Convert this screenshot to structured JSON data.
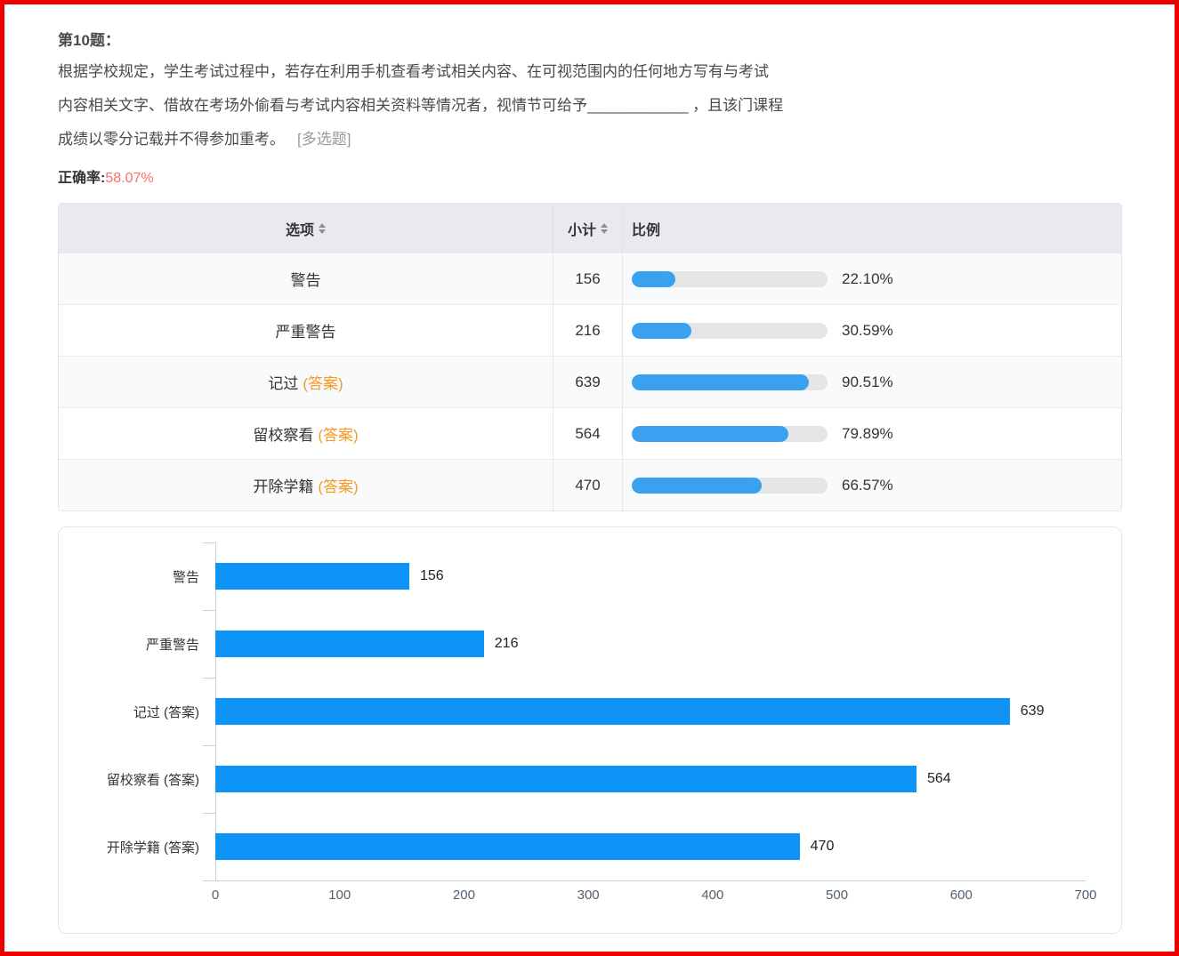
{
  "colors": {
    "frame_red": "#ee0000",
    "accuracy_red": "#ff6b6b",
    "answer_orange": "#f59a23",
    "table_progress_blue": "#3aa1f1",
    "chart_bar_blue": "#0d94f6",
    "track_gray": "#e5e5e6",
    "header_bg": "#e8eaef"
  },
  "question": {
    "number": "第10题：",
    "lines": [
      "根据学校规定，学生考试过程中，若存在利用手机查看考试相关内容、在可视范围内的任何地方写有与考试",
      "内容相关文字、借故在考场外偷看与考试内容相关资料等情况者，视情节可给予____________ ，且该门课程",
      "成绩以零分记载并不得参加重考。"
    ],
    "type_tag": "[多选题]",
    "accuracy_label": "正确率:",
    "accuracy_value": "58.07%"
  },
  "table": {
    "headers": [
      "选项",
      "小计",
      "比例"
    ],
    "rows": [
      {
        "option": "警告",
        "tag": "",
        "count": "156",
        "percent": "22.10%",
        "percent_value": 22.1
      },
      {
        "option": "严重警告",
        "tag": "",
        "count": "216",
        "percent": "30.59%",
        "percent_value": 30.59
      },
      {
        "option": "记过",
        "tag": "(答案)",
        "count": "639",
        "percent": "90.51%",
        "percent_value": 90.51
      },
      {
        "option": "留校察看",
        "tag": "(答案)",
        "count": "564",
        "percent": "79.89%",
        "percent_value": 79.89
      },
      {
        "option": "开除学籍",
        "tag": "(答案)",
        "count": "470",
        "percent": "66.57%",
        "percent_value": 66.57
      }
    ]
  },
  "chart_data": {
    "type": "bar",
    "orientation": "horizontal",
    "title": "",
    "categories": [
      "警告",
      "严重警告",
      "记过 (答案)",
      "留校察看 (答案)",
      "开除学籍 (答案)"
    ],
    "values": [
      156,
      216,
      639,
      564,
      470
    ],
    "xlabel": "",
    "ylabel": "",
    "xlim": [
      0,
      700
    ],
    "xticks": [
      0,
      100,
      200,
      300,
      400,
      500,
      600,
      700
    ],
    "grid": false,
    "legend": false,
    "value_labels": true
  }
}
